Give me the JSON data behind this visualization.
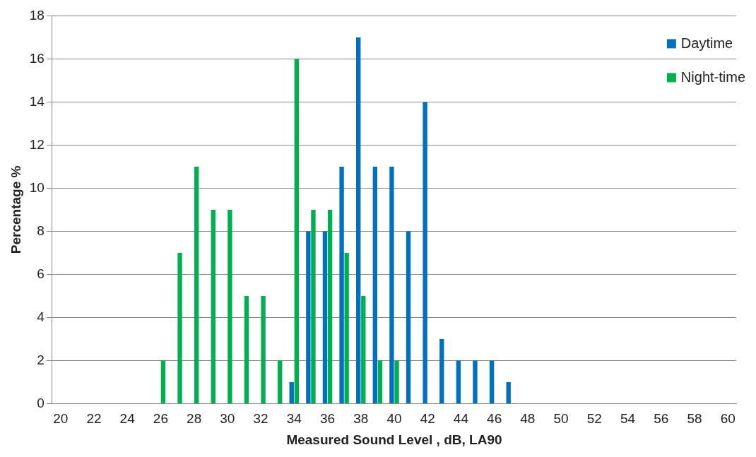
{
  "chart_data": {
    "type": "bar",
    "xlabel": "Measured Sound Level , dB, LA90",
    "ylabel": "Percentage %",
    "categories": [
      "20",
      null,
      "22",
      null,
      "24",
      null,
      "26",
      null,
      "28",
      null,
      "30",
      null,
      "32",
      null,
      "34",
      null,
      "36",
      null,
      "38",
      null,
      "40",
      null,
      "42",
      null,
      "44",
      null,
      "46",
      null,
      "48",
      null,
      "50",
      null,
      "52",
      null,
      "54",
      null,
      "56",
      null,
      "58",
      null,
      "60"
    ],
    "series": [
      {
        "name": "Daytime",
        "color": "#0070c0",
        "values": [
          null,
          null,
          null,
          null,
          null,
          null,
          null,
          null,
          null,
          null,
          null,
          null,
          null,
          null,
          1,
          8,
          8,
          11,
          17,
          11,
          11,
          8,
          14,
          3,
          2,
          2,
          2,
          1,
          null,
          null,
          null,
          null,
          null,
          null,
          null,
          null,
          null,
          null,
          null,
          null,
          null
        ]
      },
      {
        "name": "Night-time",
        "color": "#00b050",
        "values": [
          null,
          null,
          null,
          null,
          null,
          null,
          2,
          7,
          11,
          9,
          9,
          5,
          5,
          2,
          16,
          9,
          9,
          7,
          5,
          2,
          2,
          null,
          null,
          null,
          null,
          null,
          null,
          null,
          null,
          null,
          null,
          null,
          null,
          null,
          null,
          null,
          null,
          null,
          null,
          null,
          null
        ]
      }
    ],
    "ylim": [
      0,
      18
    ],
    "yticks": [
      0,
      2,
      4,
      6,
      8,
      10,
      12,
      14,
      16,
      18
    ],
    "grid": "y",
    "legend": "top right"
  }
}
